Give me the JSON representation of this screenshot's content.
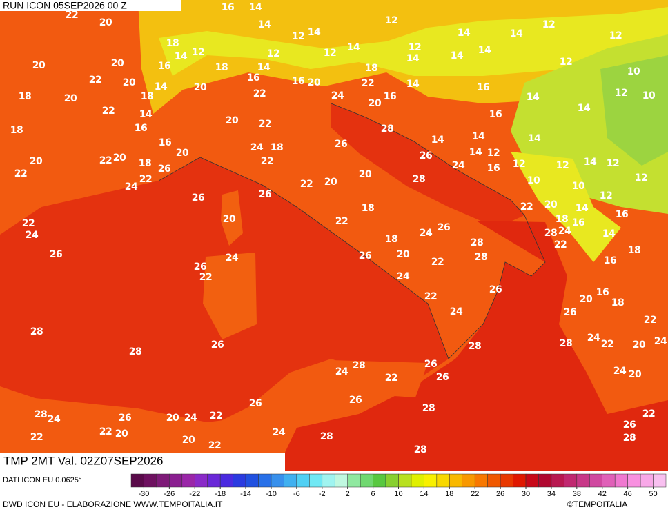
{
  "header": {
    "run": "RUN ICON 05SEP2026 00 Z"
  },
  "map": {
    "labels": [
      22,
      20,
      16,
      14,
      14,
      12,
      14,
      12,
      14,
      14,
      12,
      12,
      18,
      14,
      12,
      12,
      12,
      14,
      12,
      14,
      14,
      14,
      12,
      20,
      20,
      16,
      18,
      14,
      22,
      20,
      14,
      20,
      16,
      16,
      20,
      18,
      22,
      14,
      16,
      10,
      18,
      20,
      18,
      22,
      24,
      20,
      16,
      14,
      12,
      10,
      22,
      14,
      20,
      22,
      16,
      14,
      18,
      16,
      28,
      14,
      14,
      16,
      24,
      18,
      26,
      14,
      14,
      12,
      20,
      20,
      22,
      20,
      18,
      22,
      26,
      24,
      16,
      12,
      12,
      14,
      12,
      22,
      22,
      26,
      20,
      22,
      20,
      28,
      10,
      10,
      12,
      24,
      26,
      26,
      12,
      22,
      20,
      14,
      18,
      20,
      22,
      22,
      24,
      18,
      16,
      16,
      14,
      24,
      26,
      28,
      24,
      22,
      18,
      28,
      18,
      26,
      24,
      26,
      20,
      22,
      28,
      16,
      26,
      22,
      24,
      26,
      22,
      20,
      16,
      18,
      24,
      26,
      22,
      28,
      26,
      28,
      28,
      24,
      22,
      20,
      24,
      28,
      28,
      26,
      24,
      22,
      26,
      24,
      20,
      26,
      26,
      28,
      28,
      24,
      26,
      20,
      24,
      22,
      22,
      26,
      22,
      20,
      22,
      24,
      28,
      20,
      22,
      28,
      28
    ]
  },
  "title": {
    "text": "TMP 2MT Val. 02Z07SEP2026"
  },
  "legend": {
    "source": "DATI ICON EU 0.0625°",
    "range": [
      -32,
      52
    ],
    "colors": [
      "#5a0a4a",
      "#6e1060",
      "#7e1a78",
      "#8a1e90",
      "#9a26a8",
      "#8a2ac8",
      "#6a28d8",
      "#4a2ae0",
      "#2a3ae0",
      "#2050e0",
      "#2870e8",
      "#3890ec",
      "#40b0f0",
      "#50d0f4",
      "#70e8f4",
      "#a0f4f0",
      "#c0f8e0",
      "#90e8a0",
      "#70d870",
      "#58c840",
      "#88d030",
      "#b8e020",
      "#e0f000",
      "#f8f000",
      "#f8d800",
      "#f8b800",
      "#f89800",
      "#f87800",
      "#f05800",
      "#e83800",
      "#e01800",
      "#c80818",
      "#b00830",
      "#b81850",
      "#c02870",
      "#c83888",
      "#d048a0",
      "#e060b8",
      "#f078d0",
      "#f890e0",
      "#f8a8e8",
      "#f8c0f0"
    ],
    "ticks": [
      -30,
      -26,
      -22,
      -18,
      -14,
      -10,
      -6,
      -2,
      2,
      6,
      10,
      14,
      18,
      22,
      26,
      30,
      34,
      38,
      42,
      46,
      50
    ]
  },
  "footer": {
    "credit": "DWD ICON EU - ELABORAZIONE WWW.TEMPOITALIA.IT",
    "copyright": "©TEMPOITALIA"
  }
}
